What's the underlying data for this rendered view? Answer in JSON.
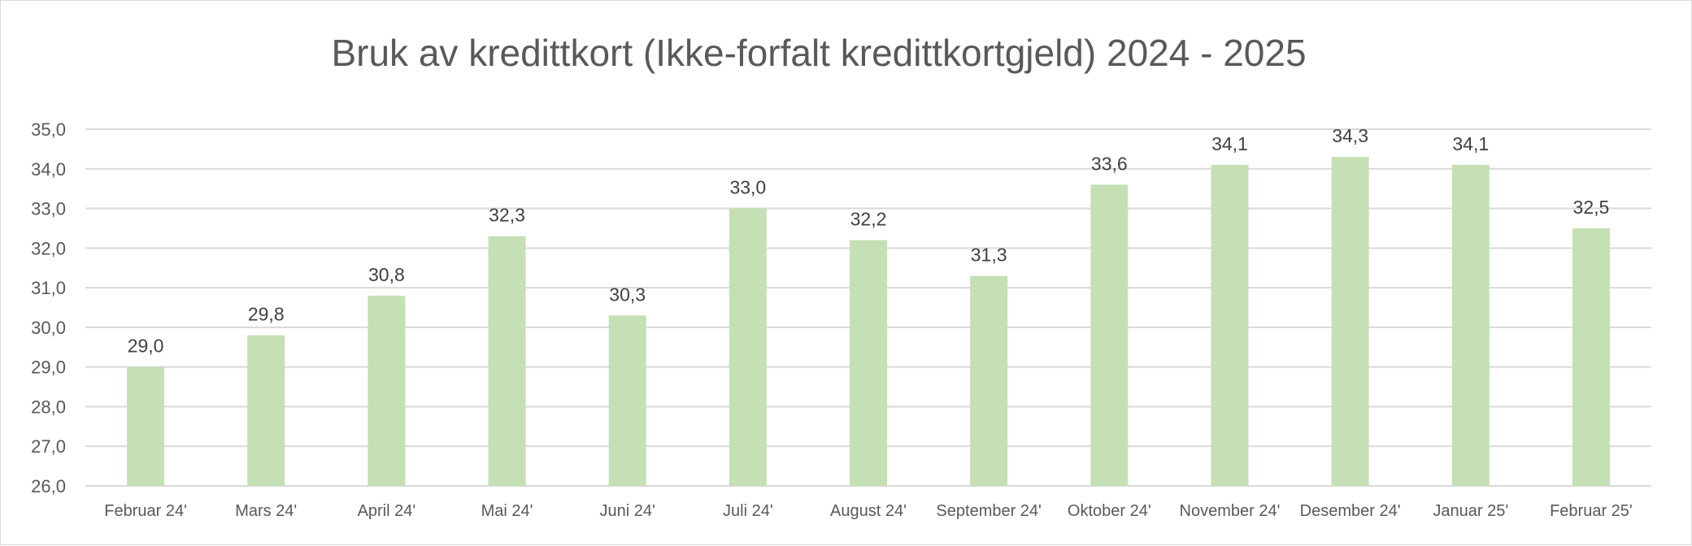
{
  "chart_data": {
    "type": "bar",
    "title": "Bruk av kredittkort (Ikke-forfalt kredittkortgjeld) 2024 - 2025",
    "xlabel": "",
    "ylabel": "",
    "categories": [
      "Februar 24'",
      "Mars 24'",
      "April 24'",
      "Mai 24'",
      "Juni 24'",
      "Juli 24'",
      "August 24'",
      "September 24'",
      "Oktober 24'",
      "November 24'",
      "Desember 24'",
      "Januar 25'",
      "Februar 25'"
    ],
    "values": [
      29.0,
      29.8,
      30.8,
      32.3,
      30.3,
      33.0,
      32.2,
      31.3,
      33.6,
      34.1,
      34.3,
      34.1,
      32.5
    ],
    "data_labels": [
      "29,0",
      "29,8",
      "30,8",
      "32,3",
      "30,3",
      "33,0",
      "32,2",
      "31,3",
      "33,6",
      "34,1",
      "34,3",
      "34,1",
      "32,5"
    ],
    "ylim": [
      26.0,
      35.0
    ],
    "yticks": [
      "26,0",
      "27,0",
      "28,0",
      "29,0",
      "30,0",
      "31,0",
      "32,0",
      "33,0",
      "34,0",
      "35,0"
    ],
    "grid": true,
    "legend": "none",
    "bar_color": "#c5e0b4",
    "grid_color": "#d9d9d9"
  }
}
